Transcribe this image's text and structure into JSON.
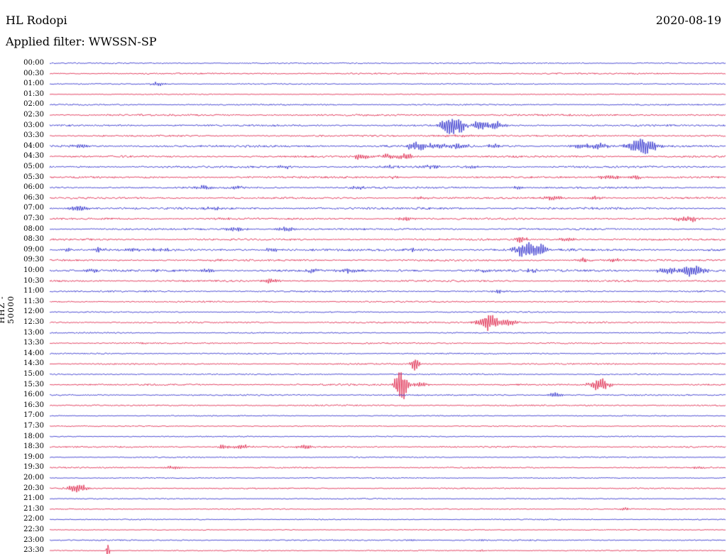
{
  "header": {
    "station": "HL Rodopi",
    "date": "2020-08-19",
    "filter_label": "Applied filter: WWSSN-SP"
  },
  "axis": {
    "channel_label": "HHZ - 50000"
  },
  "chart_data": {
    "type": "line",
    "subtype": "helicorder-seismogram",
    "title": "HL Rodopi",
    "date": "2020-08-19",
    "filter": "WWSSN-SP",
    "scale_label": "HHZ - 50000",
    "row_interval_minutes": 30,
    "trace_colors": {
      "hour": "#1e1ec8",
      "half_hour": "#dc143c"
    },
    "rows": [
      "00:00",
      "00:30",
      "01:00",
      "01:30",
      "02:00",
      "02:30",
      "03:00",
      "03:30",
      "04:00",
      "04:30",
      "05:00",
      "05:30",
      "06:00",
      "06:30",
      "07:00",
      "07:30",
      "08:00",
      "08:30",
      "09:00",
      "09:30",
      "10:00",
      "10:30",
      "11:00",
      "11:30",
      "12:00",
      "12:30",
      "13:00",
      "13:30",
      "14:00",
      "14:30",
      "15:00",
      "15:30",
      "16:00",
      "16:30",
      "17:00",
      "17:30",
      "18:00",
      "18:30",
      "19:00",
      "19:30",
      "20:00",
      "20:30",
      "21:00",
      "21:30",
      "22:00",
      "22:30",
      "23:00",
      "23:30"
    ],
    "noise_levels": [
      0.7,
      0.8,
      0.6,
      0.5,
      0.8,
      1.0,
      1.0,
      0.9,
      1.2,
      1.0,
      1.1,
      1.0,
      1.0,
      1.0,
      1.2,
      1.0,
      1.0,
      1.0,
      1.3,
      1.0,
      1.3,
      1.0,
      0.9,
      0.8,
      0.7,
      0.9,
      0.7,
      0.8,
      0.7,
      0.8,
      0.7,
      0.9,
      0.8,
      0.8,
      0.6,
      0.6,
      0.6,
      0.8,
      0.6,
      0.7,
      0.6,
      0.7,
      0.6,
      0.6,
      0.6,
      0.5,
      0.7,
      0.6
    ],
    "events": [
      {
        "row": 2,
        "x": 0.16,
        "a": 2.5,
        "w": 8
      },
      {
        "row": 6,
        "x": 0.597,
        "a": 13,
        "w": 12
      },
      {
        "row": 6,
        "x": 0.634,
        "a": 6,
        "w": 9
      },
      {
        "row": 6,
        "x": 0.662,
        "a": 4,
        "w": 11
      },
      {
        "row": 7,
        "x": 0.6,
        "a": 1.3,
        "w": 30
      },
      {
        "row": 8,
        "x": 0.047,
        "a": 2.5,
        "w": 10
      },
      {
        "row": 8,
        "x": 0.541,
        "a": 6,
        "w": 8
      },
      {
        "row": 8,
        "x": 0.567,
        "a": 3,
        "w": 10
      },
      {
        "row": 8,
        "x": 0.6,
        "a": 3,
        "w": 14
      },
      {
        "row": 8,
        "x": 0.657,
        "a": 3,
        "w": 6
      },
      {
        "row": 8,
        "x": 0.788,
        "a": 3,
        "w": 12
      },
      {
        "row": 8,
        "x": 0.814,
        "a": 3.5,
        "w": 10
      },
      {
        "row": 8,
        "x": 0.877,
        "a": 11,
        "w": 13
      },
      {
        "row": 9,
        "x": 0.46,
        "a": 4,
        "w": 7
      },
      {
        "row": 9,
        "x": 0.499,
        "a": 2.5,
        "w": 10
      },
      {
        "row": 9,
        "x": 0.527,
        "a": 4,
        "w": 8
      },
      {
        "row": 10,
        "x": 0.347,
        "a": 2,
        "w": 8
      },
      {
        "row": 10,
        "x": 0.499,
        "a": 2.5,
        "w": 8
      },
      {
        "row": 10,
        "x": 0.567,
        "a": 2,
        "w": 8
      },
      {
        "row": 10,
        "x": 0.62,
        "a": 1.5,
        "w": 8
      },
      {
        "row": 11,
        "x": 0.509,
        "a": 1.5,
        "w": 6
      },
      {
        "row": 11,
        "x": 0.83,
        "a": 2.5,
        "w": 14
      },
      {
        "row": 11,
        "x": 0.866,
        "a": 2,
        "w": 8
      },
      {
        "row": 12,
        "x": 0.226,
        "a": 2.5,
        "w": 8
      },
      {
        "row": 12,
        "x": 0.275,
        "a": 2.2,
        "w": 8
      },
      {
        "row": 12,
        "x": 0.457,
        "a": 2.5,
        "w": 8
      },
      {
        "row": 12,
        "x": 0.693,
        "a": 1.5,
        "w": 8
      },
      {
        "row": 13,
        "x": 0.551,
        "a": 1.8,
        "w": 8
      },
      {
        "row": 13,
        "x": 0.748,
        "a": 3,
        "w": 10
      },
      {
        "row": 13,
        "x": 0.807,
        "a": 2.5,
        "w": 10
      },
      {
        "row": 14,
        "x": 0.044,
        "a": 3.5,
        "w": 12
      },
      {
        "row": 14,
        "x": 0.242,
        "a": 2,
        "w": 8
      },
      {
        "row": 15,
        "x": 0.254,
        "a": 1.8,
        "w": 7
      },
      {
        "row": 15,
        "x": 0.527,
        "a": 2.5,
        "w": 8
      },
      {
        "row": 15,
        "x": 0.943,
        "a": 3.5,
        "w": 12
      },
      {
        "row": 16,
        "x": 0.275,
        "a": 2.8,
        "w": 12
      },
      {
        "row": 16,
        "x": 0.349,
        "a": 3,
        "w": 10
      },
      {
        "row": 17,
        "x": 0.696,
        "a": 3.5,
        "w": 7
      },
      {
        "row": 17,
        "x": 0.767,
        "a": 2.8,
        "w": 8
      },
      {
        "row": 18,
        "x": 0.026,
        "a": 2,
        "w": 6
      },
      {
        "row": 18,
        "x": 0.074,
        "a": 2.5,
        "w": 10
      },
      {
        "row": 18,
        "x": 0.121,
        "a": 2.5,
        "w": 8
      },
      {
        "row": 18,
        "x": 0.163,
        "a": 2.2,
        "w": 8
      },
      {
        "row": 18,
        "x": 0.329,
        "a": 2.5,
        "w": 8
      },
      {
        "row": 18,
        "x": 0.536,
        "a": 2.5,
        "w": 7
      },
      {
        "row": 18,
        "x": 0.704,
        "a": 9,
        "w": 12
      },
      {
        "row": 18,
        "x": 0.727,
        "a": 5,
        "w": 8
      },
      {
        "row": 19,
        "x": 0.242,
        "a": 1.8,
        "w": 7
      },
      {
        "row": 19,
        "x": 0.79,
        "a": 3,
        "w": 8
      },
      {
        "row": 19,
        "x": 0.838,
        "a": 2,
        "w": 7
      },
      {
        "row": 20,
        "x": 0.063,
        "a": 2,
        "w": 7
      },
      {
        "row": 20,
        "x": 0.233,
        "a": 2.5,
        "w": 8
      },
      {
        "row": 20,
        "x": 0.389,
        "a": 2.5,
        "w": 7
      },
      {
        "row": 20,
        "x": 0.443,
        "a": 2.5,
        "w": 7
      },
      {
        "row": 20,
        "x": 0.643,
        "a": 2,
        "w": 7
      },
      {
        "row": 20,
        "x": 0.716,
        "a": 2,
        "w": 7
      },
      {
        "row": 20,
        "x": 0.914,
        "a": 4.5,
        "w": 10
      },
      {
        "row": 20,
        "x": 0.951,
        "a": 8,
        "w": 12
      },
      {
        "row": 21,
        "x": 0.328,
        "a": 2.8,
        "w": 8
      },
      {
        "row": 22,
        "x": 0.662,
        "a": 2.2,
        "w": 8
      },
      {
        "row": 25,
        "x": 0.651,
        "a": 10,
        "w": 12
      },
      {
        "row": 25,
        "x": 0.678,
        "a": 4,
        "w": 10
      },
      {
        "row": 27,
        "x": 0.142,
        "a": 1.5,
        "w": 8
      },
      {
        "row": 29,
        "x": 0.541,
        "a": 9,
        "w": 4
      },
      {
        "row": 31,
        "x": 0.52,
        "a": 20,
        "w": 6
      },
      {
        "row": 31,
        "x": 0.546,
        "a": 3,
        "w": 10
      },
      {
        "row": 31,
        "x": 0.814,
        "a": 8,
        "w": 10
      },
      {
        "row": 32,
        "x": 0.748,
        "a": 2.8,
        "w": 9
      },
      {
        "row": 37,
        "x": 0.257,
        "a": 3.5,
        "w": 5
      },
      {
        "row": 37,
        "x": 0.284,
        "a": 2.5,
        "w": 10
      },
      {
        "row": 37,
        "x": 0.378,
        "a": 3.5,
        "w": 8
      },
      {
        "row": 39,
        "x": 0.184,
        "a": 2.5,
        "w": 10
      },
      {
        "row": 39,
        "x": 0.958,
        "a": 2,
        "w": 6
      },
      {
        "row": 41,
        "x": 0.042,
        "a": 5,
        "w": 10
      },
      {
        "row": 43,
        "x": 0.851,
        "a": 1.5,
        "w": 6
      },
      {
        "row": 46,
        "x": 0.536,
        "a": 1.2,
        "w": 6
      },
      {
        "row": 46,
        "x": 0.641,
        "a": 1.2,
        "w": 6
      },
      {
        "row": 47,
        "x": 0.086,
        "a": 16,
        "w": 1.2
      },
      {
        "row": 47,
        "x": 0.641,
        "a": 1.2,
        "w": 6
      }
    ]
  }
}
